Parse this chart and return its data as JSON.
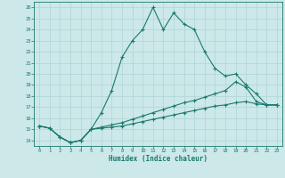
{
  "xlabel": "Humidex (Indice chaleur)",
  "background_color": "#cce8e8",
  "line_color": "#1a7a6e",
  "grid_color": "#b0d4d4",
  "xlim": [
    -0.5,
    23.5
  ],
  "ylim": [
    13.5,
    26.5
  ],
  "xticks": [
    0,
    1,
    2,
    3,
    4,
    5,
    6,
    7,
    8,
    9,
    10,
    11,
    12,
    13,
    14,
    15,
    16,
    17,
    18,
    19,
    20,
    21,
    22,
    23
  ],
  "yticks": [
    14,
    15,
    16,
    17,
    18,
    19,
    20,
    21,
    22,
    23,
    24,
    25,
    26
  ],
  "line1_x": [
    0,
    1,
    2,
    3,
    4,
    5,
    6,
    7,
    8,
    9,
    10,
    11,
    12,
    13,
    14,
    15,
    16,
    17,
    18,
    19,
    20,
    21,
    22,
    23
  ],
  "line1_y": [
    15.3,
    15.1,
    14.3,
    13.8,
    14.0,
    15.0,
    16.5,
    18.5,
    21.5,
    23.0,
    24.0,
    26.0,
    24.0,
    25.5,
    24.5,
    24.0,
    22.0,
    20.5,
    19.8,
    20.0,
    19.0,
    18.2,
    17.2,
    17.2
  ],
  "line2_x": [
    0,
    1,
    2,
    3,
    4,
    5,
    6,
    7,
    8,
    9,
    10,
    11,
    12,
    13,
    14,
    15,
    16,
    17,
    18,
    19,
    20,
    21,
    22,
    23
  ],
  "line2_y": [
    15.3,
    15.1,
    14.3,
    13.8,
    14.0,
    15.0,
    15.2,
    15.4,
    15.6,
    15.9,
    16.2,
    16.5,
    16.8,
    17.1,
    17.4,
    17.6,
    17.9,
    18.2,
    18.5,
    19.3,
    18.8,
    17.5,
    17.2,
    17.2
  ],
  "line3_x": [
    0,
    1,
    2,
    3,
    4,
    5,
    6,
    7,
    8,
    9,
    10,
    11,
    12,
    13,
    14,
    15,
    16,
    17,
    18,
    19,
    20,
    21,
    22,
    23
  ],
  "line3_y": [
    15.3,
    15.1,
    14.3,
    13.8,
    14.0,
    15.0,
    15.1,
    15.2,
    15.3,
    15.5,
    15.7,
    15.9,
    16.1,
    16.3,
    16.5,
    16.7,
    16.9,
    17.1,
    17.2,
    17.4,
    17.5,
    17.3,
    17.2,
    17.2
  ]
}
